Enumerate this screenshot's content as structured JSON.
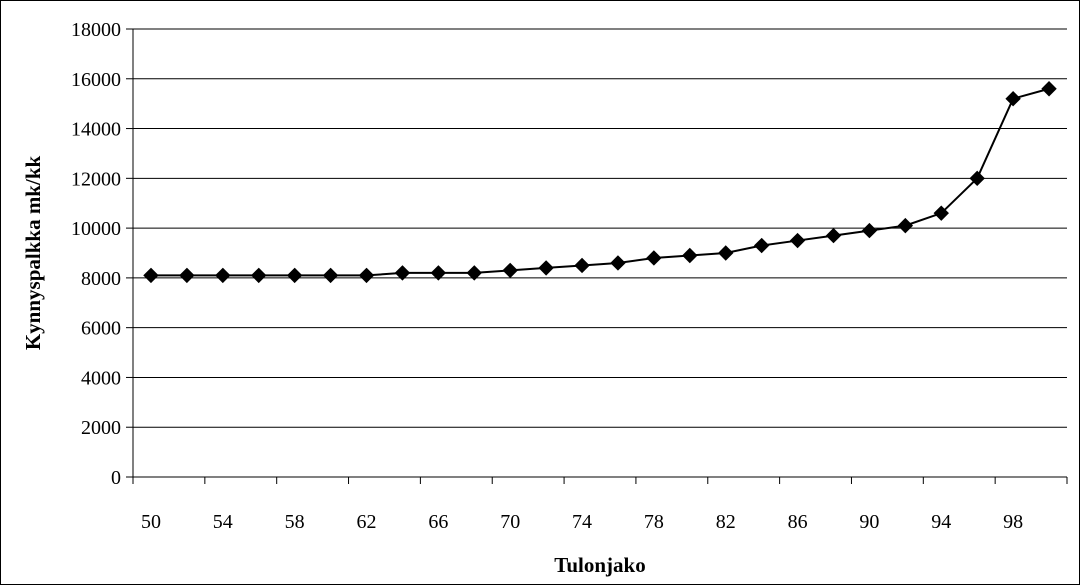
{
  "chart_data": {
    "type": "line",
    "title": "",
    "xlabel": "Tulonjako",
    "ylabel": "Kynnyspalkka mk/kk",
    "x": [
      50,
      52,
      54,
      56,
      58,
      60,
      62,
      64,
      66,
      68,
      70,
      72,
      74,
      76,
      78,
      80,
      82,
      84,
      86,
      88,
      90,
      92,
      94,
      96,
      98,
      100
    ],
    "series": [
      {
        "name": "",
        "values": [
          8100,
          8100,
          8100,
          8100,
          8100,
          8100,
          8100,
          8200,
          8200,
          8200,
          8300,
          8400,
          8500,
          8600,
          8800,
          8900,
          9000,
          9300,
          9500,
          9700,
          9900,
          10100,
          10600,
          12000,
          15200,
          15600
        ]
      }
    ],
    "ylim": [
      0,
      18000
    ],
    "yticks": [
      "0",
      "2000",
      "4000",
      "6000",
      "8000",
      "10000",
      "12000",
      "14000",
      "16000",
      "18000"
    ],
    "xticks": [
      "50",
      "54",
      "58",
      "62",
      "66",
      "70",
      "74",
      "78",
      "82",
      "86",
      "90",
      "94",
      "98"
    ],
    "grid": true,
    "legend": "none",
    "colors": {
      "line": "#000000",
      "marker": "#000000",
      "grid": "#000000"
    }
  }
}
